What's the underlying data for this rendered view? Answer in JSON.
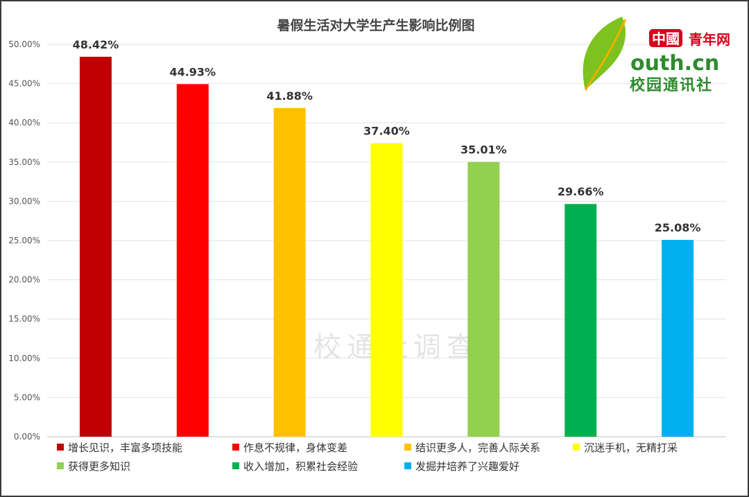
{
  "chart_data": {
    "type": "bar",
    "title": "暑假生活对大学生产生影响比例图",
    "categories": [
      "增长见识，丰富多项技能",
      "作息不规律，身体变差",
      "结识更多人，完善人际关系",
      "沉迷手机，无精打采",
      "获得更多知识",
      "收入增加，积累社会经验",
      "发掘并培养了兴趣爱好"
    ],
    "values": [
      48.42,
      44.93,
      41.88,
      37.4,
      35.01,
      29.66,
      25.08
    ],
    "data_labels": [
      "48.42%",
      "44.93%",
      "41.88%",
      "37.40%",
      "35.01%",
      "29.66%",
      "25.08%"
    ],
    "colors": [
      "#c00000",
      "#ff0000",
      "#ffc000",
      "#ffff00",
      "#92d050",
      "#00b050",
      "#00b0f0"
    ],
    "ylim": [
      0,
      50
    ],
    "yticks": [
      "0.00%",
      "5.00%",
      "10.00%",
      "15.00%",
      "20.00%",
      "25.00%",
      "30.00%",
      "35.00%",
      "40.00%",
      "45.00%",
      "50.00%"
    ],
    "xlabel": "",
    "ylabel": "",
    "grid": true,
    "legend_position": "bottom"
  },
  "watermark": "校通社调查",
  "logo": {
    "badge": "中國",
    "name": "青年网",
    "domain": "outh.cn",
    "tagline": "校园通讯社",
    "accent": "#2e8b2e",
    "red": "#d6001c",
    "leaf": "#7dc21e"
  }
}
